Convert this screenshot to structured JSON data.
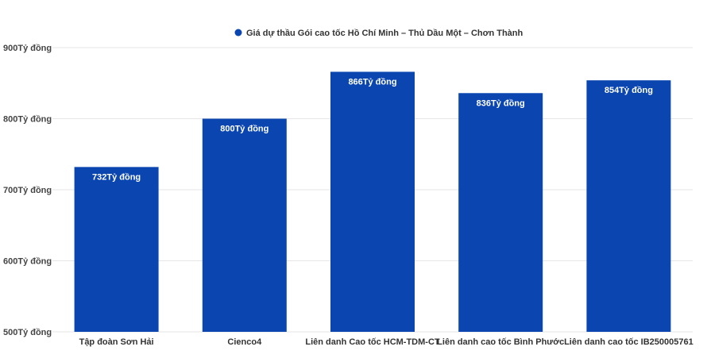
{
  "chart_data": {
    "type": "bar",
    "categories": [
      "Tập đoàn Sơn Hải",
      "Cienco4",
      "Liên danh Cao tốc HCM-TDM-CT",
      "Liên danh cao tốc Bình Phước",
      "Liên danh cao tốc IB250005761"
    ],
    "series": [
      {
        "name": "Giá dự thầu Gói cao tốc Hồ Chí Minh – Thủ Dầu Một – Chơn Thành",
        "values": [
          732,
          800,
          866,
          836,
          854
        ],
        "color": "#0b46b0"
      }
    ],
    "data_labels": [
      "732Tỷ đồng",
      "800Tỷ đồng",
      "866Tỷ đồng",
      "836Tỷ đồng",
      "854Tỷ đồng"
    ],
    "ylim": [
      500,
      900
    ],
    "yticks": [
      500,
      600,
      700,
      800,
      900
    ],
    "ytick_labels": [
      "500Tỷ đồng",
      "600Tỷ đồng",
      "700Tỷ đồng",
      "800Tỷ đồng",
      "900Tỷ đồng"
    ],
    "legend_position": "top-center",
    "grid": true,
    "title": "",
    "xlabel": "",
    "ylabel": ""
  }
}
